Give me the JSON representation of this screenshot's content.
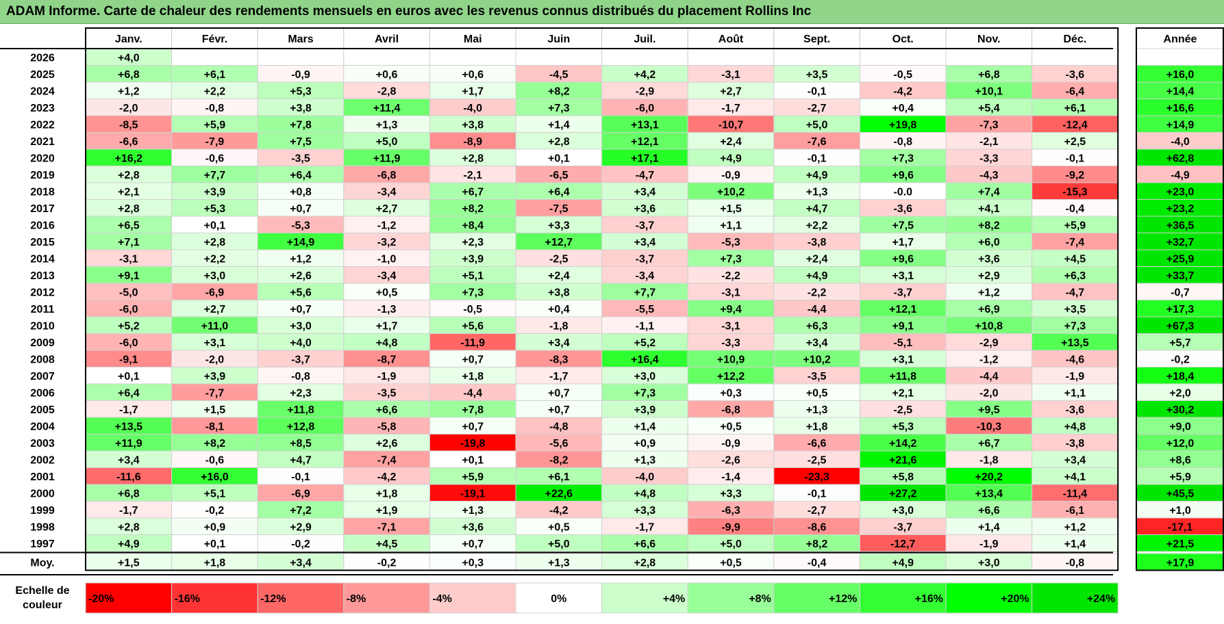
{
  "title": "ADAM Informe. Carte de chaleur des rendements mensuels en euros avec les revenus connus distribués du placement Rollins Inc",
  "chart_data": {
    "type": "heatmap",
    "months": [
      "Janv.",
      "Févr.",
      "Mars",
      "Avril",
      "Mai",
      "Juin",
      "Juil.",
      "Août",
      "Sept.",
      "Oct.",
      "Nov.",
      "Déc."
    ],
    "year_header": "Année",
    "rows": [
      {
        "year": "2026",
        "values": [
          4.0,
          null,
          null,
          null,
          null,
          null,
          null,
          null,
          null,
          null,
          null,
          null
        ],
        "annual": null
      },
      {
        "year": "2025",
        "values": [
          6.8,
          6.1,
          -0.9,
          0.6,
          0.6,
          -4.5,
          4.2,
          -3.1,
          3.5,
          -0.5,
          6.8,
          -3.6
        ],
        "annual": 16.0
      },
      {
        "year": "2024",
        "values": [
          1.2,
          2.2,
          5.3,
          -2.8,
          1.7,
          8.2,
          -2.9,
          2.7,
          -0.1,
          -4.2,
          10.1,
          -6.4
        ],
        "annual": 14.4
      },
      {
        "year": "2023",
        "values": [
          -2.0,
          -0.8,
          3.8,
          11.4,
          -4.0,
          7.3,
          -6.0,
          -1.7,
          -2.7,
          0.4,
          5.4,
          6.1
        ],
        "annual": 16.6
      },
      {
        "year": "2022",
        "values": [
          -8.5,
          5.9,
          7.8,
          1.3,
          3.8,
          1.4,
          13.1,
          -10.7,
          5.0,
          19.8,
          -7.3,
          -12.4
        ],
        "annual": 14.9
      },
      {
        "year": "2021",
        "values": [
          -6.6,
          -7.9,
          7.5,
          5.0,
          -8.9,
          2.8,
          12.1,
          2.4,
          -7.6,
          -0.8,
          -2.1,
          2.5
        ],
        "annual": -4.0
      },
      {
        "year": "2020",
        "values": [
          16.2,
          -0.6,
          -3.5,
          11.9,
          2.8,
          0.1,
          17.1,
          4.9,
          -0.1,
          7.3,
          -3.3,
          -0.1
        ],
        "annual": 62.8
      },
      {
        "year": "2019",
        "values": [
          2.8,
          7.7,
          6.4,
          -6.8,
          -2.1,
          -6.5,
          -4.7,
          -0.9,
          4.9,
          9.6,
          -4.3,
          -9.2
        ],
        "annual": -4.9
      },
      {
        "year": "2018",
        "values": [
          2.1,
          3.9,
          0.8,
          -3.4,
          6.7,
          6.4,
          3.4,
          10.2,
          1.3,
          "-0.0",
          7.4,
          -15.3
        ],
        "annual": 23.0
      },
      {
        "year": "2017",
        "values": [
          2.8,
          5.3,
          0.7,
          2.7,
          8.2,
          -7.5,
          3.6,
          1.5,
          4.7,
          -3.6,
          4.1,
          -0.4
        ],
        "annual": 23.2
      },
      {
        "year": "2016",
        "values": [
          6.5,
          0.1,
          -5.3,
          -1.2,
          8.4,
          3.3,
          -3.7,
          1.1,
          2.2,
          7.5,
          8.2,
          5.9
        ],
        "annual": 36.5
      },
      {
        "year": "2015",
        "values": [
          7.1,
          2.8,
          14.9,
          -3.2,
          2.3,
          12.7,
          3.4,
          -5.3,
          -3.8,
          1.7,
          6.0,
          -7.4
        ],
        "annual": 32.7
      },
      {
        "year": "2014",
        "values": [
          -3.1,
          2.2,
          1.2,
          -1.0,
          3.9,
          -2.5,
          -3.7,
          7.3,
          2.4,
          9.6,
          3.6,
          4.5
        ],
        "annual": 25.9
      },
      {
        "year": "2013",
        "values": [
          9.1,
          3.0,
          2.6,
          -3.4,
          5.1,
          2.4,
          -3.4,
          -2.2,
          4.9,
          3.1,
          2.9,
          6.3
        ],
        "annual": 33.7
      },
      {
        "year": "2012",
        "values": [
          -5.0,
          -6.9,
          5.6,
          0.5,
          7.3,
          3.8,
          7.7,
          -3.1,
          -2.2,
          -3.7,
          1.2,
          -4.7
        ],
        "annual": -0.7
      },
      {
        "year": "2011",
        "values": [
          -6.0,
          2.7,
          0.7,
          -1.3,
          -0.5,
          0.4,
          -5.5,
          9.4,
          -4.4,
          12.1,
          6.9,
          3.5
        ],
        "annual": 17.3
      },
      {
        "year": "2010",
        "values": [
          5.2,
          11.0,
          3.0,
          1.7,
          5.6,
          -1.8,
          -1.1,
          -3.1,
          6.3,
          9.1,
          10.8,
          7.3
        ],
        "annual": 67.3
      },
      {
        "year": "2009",
        "values": [
          -6.0,
          3.1,
          4.0,
          4.8,
          -11.9,
          3.4,
          5.2,
          -3.3,
          3.4,
          -5.1,
          -2.9,
          13.5
        ],
        "annual": 5.7
      },
      {
        "year": "2008",
        "values": [
          -9.1,
          -2.0,
          -3.7,
          -8.7,
          0.7,
          -8.3,
          16.4,
          10.9,
          10.2,
          3.1,
          -1.2,
          -4.6
        ],
        "annual": -0.2
      },
      {
        "year": "2007",
        "values": [
          0.1,
          3.9,
          -0.8,
          -1.9,
          1.8,
          -1.7,
          3.0,
          12.2,
          -3.5,
          11.8,
          -4.4,
          -1.9
        ],
        "annual": 18.4
      },
      {
        "year": "2006",
        "values": [
          6.4,
          -7.7,
          2.3,
          -3.5,
          -4.4,
          0.7,
          7.3,
          0.3,
          0.5,
          2.1,
          -2.0,
          1.1
        ],
        "annual": 2.0
      },
      {
        "year": "2005",
        "values": [
          -1.7,
          1.5,
          11.8,
          6.6,
          7.8,
          0.7,
          3.9,
          -6.8,
          1.3,
          -2.5,
          9.5,
          -3.6
        ],
        "annual": 30.2
      },
      {
        "year": "2004",
        "values": [
          13.5,
          -8.1,
          12.8,
          -5.8,
          0.7,
          -4.8,
          1.4,
          0.5,
          1.8,
          5.3,
          -10.3,
          4.8
        ],
        "annual": 9.0
      },
      {
        "year": "2003",
        "values": [
          11.9,
          8.2,
          8.5,
          2.6,
          -19.8,
          -5.6,
          0.9,
          -0.9,
          -6.6,
          14.2,
          6.7,
          -3.8
        ],
        "annual": 12.0
      },
      {
        "year": "2002",
        "values": [
          3.4,
          -0.6,
          4.7,
          -7.4,
          0.1,
          -8.2,
          1.3,
          -2.6,
          -2.5,
          21.6,
          -1.8,
          3.4
        ],
        "annual": 8.6
      },
      {
        "year": "2001",
        "values": [
          -11.6,
          16.0,
          -0.1,
          -4.2,
          5.9,
          6.1,
          -4.0,
          -1.4,
          -23.3,
          5.8,
          20.2,
          4.1
        ],
        "annual": 5.9
      },
      {
        "year": "2000",
        "values": [
          6.8,
          5.1,
          -6.9,
          1.8,
          -19.1,
          22.6,
          4.8,
          3.3,
          -0.1,
          27.2,
          13.4,
          -11.4
        ],
        "annual": 45.5
      },
      {
        "year": "1999",
        "values": [
          -1.7,
          -0.2,
          7.2,
          1.9,
          1.3,
          -4.2,
          3.3,
          -6.3,
          -2.7,
          3.0,
          6.6,
          -6.1
        ],
        "annual": 1.0
      },
      {
        "year": "1998",
        "values": [
          2.8,
          0.9,
          2.9,
          -7.1,
          3.6,
          0.5,
          -1.7,
          -9.9,
          -8.6,
          -3.7,
          1.4,
          1.2
        ],
        "annual": -17.1
      },
      {
        "year": "1997",
        "values": [
          4.9,
          0.1,
          -0.2,
          4.5,
          0.7,
          5.0,
          6.6,
          5.0,
          8.2,
          -12.7,
          -1.9,
          1.4
        ],
        "annual": 21.5
      }
    ],
    "average": {
      "label": "Moy.",
      "values": [
        1.5,
        1.8,
        3.4,
        -0.2,
        0.3,
        1.3,
        2.8,
        0.5,
        -0.4,
        4.9,
        3.0,
        -0.8
      ],
      "annual": 17.9
    },
    "scale": {
      "label_line1": "Echelle de",
      "label_line2": "couleur",
      "stops": [
        {
          "label": "-20%",
          "value": -20,
          "color": "#ff0000"
        },
        {
          "label": "-16%",
          "value": -16,
          "color": "#ff3333"
        },
        {
          "label": "-12%",
          "value": -12,
          "color": "#ff6666"
        },
        {
          "label": "-8%",
          "value": -8,
          "color": "#ff9999"
        },
        {
          "label": "-4%",
          "value": -4,
          "color": "#ffcccc"
        },
        {
          "label": "0%",
          "value": 0,
          "color": "#ffffff"
        },
        {
          "label": "+4%",
          "value": 4,
          "color": "#ccffcc"
        },
        {
          "label": "+8%",
          "value": 8,
          "color": "#99ff99"
        },
        {
          "label": "+12%",
          "value": 12,
          "color": "#66ff66"
        },
        {
          "label": "+16%",
          "value": 16,
          "color": "#33ff33"
        },
        {
          "label": "+20%",
          "value": 20,
          "color": "#00ff00"
        },
        {
          "label": "+24%",
          "value": 24,
          "color": "#00e600"
        }
      ]
    }
  }
}
